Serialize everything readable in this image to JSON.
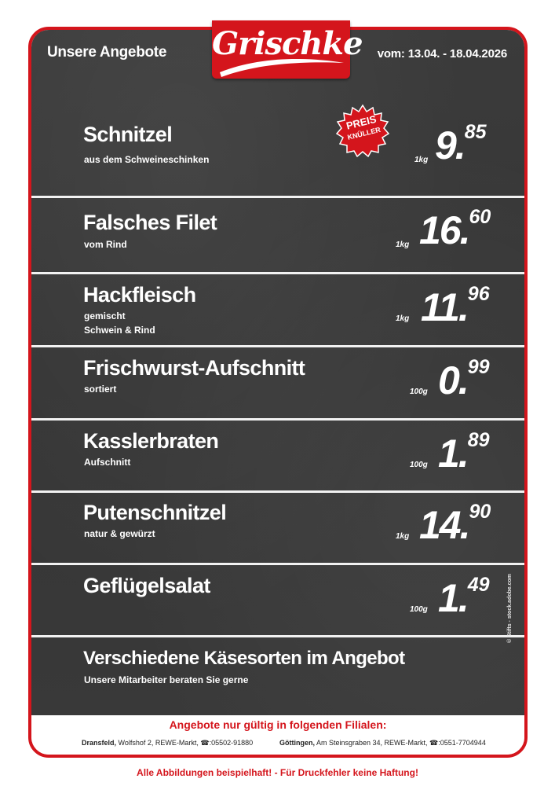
{
  "header": {
    "title": "Unsere Angebote",
    "brand": "Grischke",
    "date_range": "vom: 13.04. - 18.04.2026"
  },
  "badge": {
    "line1": "PREIS",
    "line2": "KNÜLLER"
  },
  "items": [
    {
      "name": "Schnitzel",
      "desc1": "aus dem Schweineschinken",
      "desc2": "",
      "unit": "1kg",
      "price_main": "9.",
      "price_cents": "85"
    },
    {
      "name": "Falsches Filet",
      "desc1": "vom Rind",
      "desc2": "",
      "unit": "1kg",
      "price_main": "16.",
      "price_cents": "60"
    },
    {
      "name": "Hackfleisch",
      "desc1": "gemischt",
      "desc2": "Schwein & Rind",
      "unit": "1kg",
      "price_main": "11.",
      "price_cents": "96"
    },
    {
      "name": "Frischwurst-Aufschnitt",
      "desc1": "sortiert",
      "desc2": "",
      "unit": "100g",
      "price_main": "0.",
      "price_cents": "99"
    },
    {
      "name": "Kasslerbraten",
      "desc1": "Aufschnitt",
      "desc2": "",
      "unit": "100g",
      "price_main": "1.",
      "price_cents": "89"
    },
    {
      "name": "Putenschnitzel",
      "desc1": "natur & gewürzt",
      "desc2": "",
      "unit": "1kg",
      "price_main": "14.",
      "price_cents": "90"
    },
    {
      "name": "Geflügelsalat",
      "desc1": "",
      "desc2": "",
      "unit": "100g",
      "price_main": "1.",
      "price_cents": "49"
    }
  ],
  "cheese": {
    "name": "Verschiedene Käsesorten im Angebot",
    "desc": "Unsere Mitarbeiter beraten Sie gerne"
  },
  "copyright": "© Stifts - stock.adobe.com",
  "footer": {
    "title": "Angebote nur gültig in folgenden Filialen:",
    "branch1_city": "Dransfeld,",
    "branch1_addr": " Wolfshof 2, REWE-Markt, ☎:05502-91880",
    "branch2_city": "Göttingen,",
    "branch2_addr": " Am Steinsgraben 34, REWE-Markt, ☎:0551-7704944"
  },
  "disclaimer": "Alle Abbildungen beispielhaft! - Für Druckfehler keine Haftung!",
  "colors": {
    "brand_red": "#d4151c",
    "board": "#383838",
    "text": "#ffffff"
  }
}
